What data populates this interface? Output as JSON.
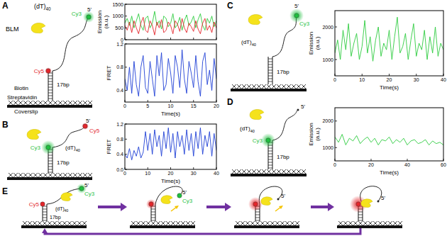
{
  "diagram": {
    "panel_letters": [
      "A",
      "B",
      "C",
      "D",
      "E"
    ],
    "dye_colors": {
      "Cy3": "#1fbf3f",
      "Cy5": "#e3262b"
    },
    "schematics": [
      {
        "tail_base": "(dT)",
        "tail_sub": "40",
        "blm": "BLM",
        "top_dye": "Cy3",
        "bottom_dye": "Cy5",
        "prime": "5'",
        "duplex": "17bp",
        "biotin": "Biotin",
        "streptavidin": "Streptavidin",
        "surface": "Coverslip"
      },
      {
        "tail_base": "(dT)",
        "tail_sub": "40",
        "top_dye": "Cy5",
        "bottom_dye": "Cy3",
        "prime": "5'",
        "duplex": "17bp"
      },
      {
        "tail_base": "(dT)",
        "tail_sub": "40",
        "top_dye": "Cy3",
        "prime": "5'",
        "duplex": "17bp"
      },
      {
        "tail_base": "(dT)",
        "tail_sub": "40",
        "bottom_dye": "Cy3",
        "prime": "5'",
        "duplex": "17bp"
      }
    ],
    "cycle": [
      {
        "top_dye": "Cy3",
        "bottom_dye": "Cy5",
        "prime": "5'",
        "tail_base": "(dT)",
        "tail_sub": "40",
        "duplex": "17bp"
      },
      {
        "top_dye": "Cy3",
        "prime": "5'"
      },
      {
        "prime": "5'"
      },
      {
        "prime": "5'"
      }
    ]
  },
  "chart_data": [
    {
      "type": "line",
      "y_label": [
        "Emission",
        "(a.u.)"
      ],
      "x": [
        0,
        0.5,
        1,
        1.5,
        2,
        2.5,
        3,
        3.5,
        4,
        4.5,
        5,
        5.5,
        6,
        6.5,
        7,
        7.5,
        8,
        8.5,
        9,
        9.5,
        10,
        10.5,
        11,
        11.5,
        12,
        12.5,
        13,
        13.5,
        14,
        14.5,
        15,
        15.5,
        16,
        16.5,
        17,
        17.5,
        18,
        18.5,
        19,
        19.5,
        20
      ],
      "series": [
        {
          "color": "#2ecc40",
          "values": [
            700,
            900,
            600,
            1000,
            500,
            800,
            1100,
            600,
            400,
            900,
            1000,
            500,
            700,
            1200,
            600,
            800,
            450,
            1000,
            900,
            550,
            700,
            1100,
            500,
            650,
            950,
            400,
            800,
            1050,
            600,
            750,
            1000,
            500,
            850,
            1100,
            600,
            400,
            900,
            700,
            1000,
            550,
            800
          ]
        },
        {
          "color": "#e3262b",
          "values": [
            600,
            400,
            750,
            300,
            800,
            500,
            250,
            700,
            950,
            400,
            300,
            800,
            600,
            200,
            750,
            500,
            850,
            300,
            400,
            750,
            600,
            250,
            800,
            650,
            350,
            900,
            500,
            300,
            700,
            550,
            350,
            800,
            450,
            250,
            700,
            900,
            400,
            600,
            300,
            750,
            500
          ]
        }
      ],
      "xlim": [
        0,
        20
      ],
      "xticks": [
        0,
        5,
        10,
        15,
        20
      ],
      "ylim": [
        0,
        1500
      ],
      "yticks": [
        0,
        500,
        1000,
        1500
      ],
      "tick_labels": "y"
    },
    {
      "type": "line",
      "y_label": "FRET",
      "x_label": "Time(s)",
      "x": [
        0,
        0.5,
        1,
        1.5,
        2,
        2.5,
        3,
        3.5,
        4,
        4.5,
        5,
        5.5,
        6,
        6.5,
        7,
        7.5,
        8,
        8.5,
        9,
        9.5,
        10,
        10.5,
        11,
        11.5,
        12,
        12.5,
        13,
        13.5,
        14,
        14.5,
        15,
        15.5,
        16,
        16.5,
        17,
        17.5,
        18,
        18.5,
        19,
        19.5,
        20
      ],
      "series": [
        {
          "color": "#1f3fd6",
          "values": [
            0.6,
            0.4,
            0.8,
            0.35,
            0.9,
            0.5,
            0.3,
            0.8,
            1.0,
            0.45,
            0.35,
            0.9,
            0.6,
            0.3,
            1.0,
            0.65,
            1.05,
            0.4,
            0.5,
            0.95,
            0.7,
            0.35,
            1.0,
            0.8,
            0.45,
            1.1,
            0.6,
            0.35,
            0.9,
            0.7,
            0.45,
            1.0,
            0.55,
            0.3,
            0.9,
            1.05,
            0.5,
            0.75,
            0.4,
            0.95,
            0.6
          ]
        }
      ],
      "xlim": [
        0,
        20
      ],
      "xticks": [
        0,
        5,
        10,
        15,
        20
      ],
      "ylim": [
        0.2,
        1.2
      ],
      "yticks": [
        0.4,
        0.8,
        1.2
      ]
    },
    {
      "type": "line",
      "y_label": "FRET",
      "x_label": "Time(s)",
      "x": [
        0,
        1,
        2,
        3,
        4,
        5,
        6,
        7,
        8,
        9,
        10,
        11,
        12,
        13,
        14,
        15,
        16,
        17,
        18,
        19,
        20,
        21,
        22,
        23,
        24,
        25,
        26,
        27,
        28,
        29,
        30,
        31,
        32,
        33,
        34,
        35,
        36,
        37,
        38,
        39,
        40
      ],
      "series": [
        {
          "color": "#1f3fd6",
          "values": [
            0.4,
            0.3,
            0.55,
            0.25,
            0.5,
            0.35,
            0.6,
            0.3,
            0.45,
            1.0,
            0.5,
            0.95,
            0.4,
            1.05,
            0.6,
            0.9,
            0.35,
            1.0,
            0.55,
            1.1,
            0.45,
            0.95,
            0.3,
            1.0,
            0.6,
            0.9,
            0.4,
            1.05,
            0.5,
            0.95,
            0.35,
            1.0,
            0.55,
            1.1,
            0.4,
            0.9,
            0.6,
            1.0,
            0.35,
            0.95,
            0.5
          ]
        }
      ],
      "xlim": [
        0,
        40
      ],
      "xticks": [
        0,
        10,
        20,
        30,
        40
      ],
      "ylim": [
        0,
        1.2
      ],
      "yticks": [
        {
          "value": 0,
          "label": "0.0"
        },
        0.4,
        0.8,
        1.2
      ]
    },
    {
      "type": "line",
      "y_label": [
        "Emission",
        "(a.u.)"
      ],
      "x_label": "Time(s)",
      "x": [
        0,
        1,
        2,
        3,
        4,
        5,
        6,
        7,
        8,
        9,
        10,
        11,
        12,
        13,
        14,
        15,
        16,
        17,
        18,
        19,
        20,
        21,
        22,
        23,
        24,
        25,
        26,
        27,
        28,
        29,
        30,
        31,
        32,
        33,
        34,
        35,
        36,
        37,
        38,
        39,
        40
      ],
      "series": [
        {
          "color": "#2ecc40",
          "values": [
            1200,
            1600,
            1000,
            1900,
            1300,
            2100,
            1100,
            1500,
            1800,
            1000,
            1400,
            2200,
            1200,
            1700,
            950,
            1600,
            2000,
            1100,
            1500,
            1300,
            1900,
            1000,
            1700,
            2300,
            1200,
            1400,
            1800,
            1000,
            1600,
            2100,
            1100,
            1500,
            1300,
            1900,
            1000,
            1700,
            1200,
            2000,
            1100,
            1500,
            1300
          ]
        }
      ],
      "xlim": [
        0,
        40
      ],
      "xticks": [
        0,
        10,
        20,
        30,
        40
      ],
      "ylim": [
        500,
        2500
      ],
      "yticks": [
        1000,
        2000
      ]
    },
    {
      "type": "line",
      "y_label": [
        "Emission",
        "(a.u.)"
      ],
      "x_label": "Time(s)",
      "x": [
        0,
        2,
        4,
        6,
        8,
        10,
        12,
        14,
        16,
        18,
        20,
        22,
        24,
        26,
        28,
        30,
        32,
        34,
        36,
        38,
        40,
        42,
        44,
        46,
        48,
        50,
        52,
        54,
        56,
        58,
        60
      ],
      "series": [
        {
          "color": "#2ecc40",
          "values": [
            1400,
            1200,
            1500,
            1100,
            1350,
            1250,
            1450,
            1150,
            1300,
            1400,
            1200,
            1350,
            1100,
            1300,
            1250,
            1400,
            1150,
            1300,
            1200,
            1350,
            1100,
            1250,
            1300,
            1150,
            1200,
            1300,
            1100,
            1250,
            1150,
            1200,
            1100
          ]
        }
      ],
      "xlim": [
        0,
        60
      ],
      "xticks": [
        0,
        20,
        40,
        60
      ],
      "ylim": [
        500,
        2500
      ],
      "yticks": [
        1000,
        2000
      ]
    }
  ]
}
